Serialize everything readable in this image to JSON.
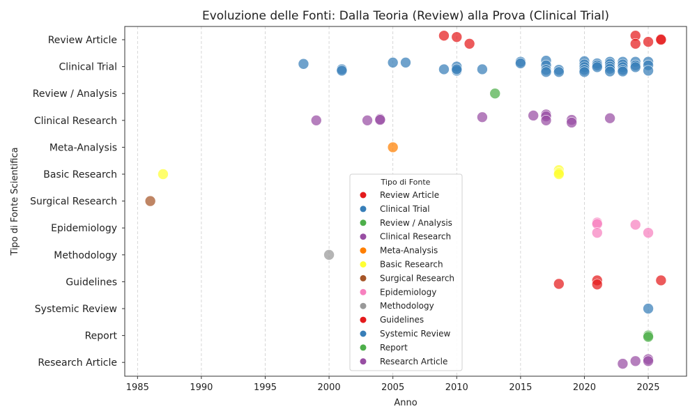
{
  "chart_data": {
    "type": "scatter",
    "title": "Evoluzione delle Fonti: Dalla Teoria (Review) alla Prova (Clinical Trial)",
    "xlabel": "Anno",
    "ylabel": "Tipo di Fonte Scientifica",
    "xlim": [
      1984,
      2028
    ],
    "xticks": [
      1985,
      1990,
      1995,
      2000,
      2005,
      2010,
      2015,
      2020,
      2025
    ],
    "grid": "vertical-dashed",
    "categories": [
      "Review Article",
      "Clinical Trial",
      "Review / Analysis",
      "Clinical Research",
      "Meta-Analysis",
      "Basic Research",
      "Surgical Research",
      "Epidemiology",
      "Methodology",
      "Guidelines",
      "Systemic Review",
      "Report",
      "Research Article"
    ],
    "legend": {
      "title": "Tipo di Fonte",
      "placement": "center-bottom",
      "entries": [
        "Review Article",
        "Clinical Trial",
        "Review / Analysis",
        "Clinical Research",
        "Meta-Analysis",
        "Basic Research",
        "Surgical Research",
        "Epidemiology",
        "Methodology",
        "Guidelines",
        "Systemic Review",
        "Report",
        "Research Article"
      ]
    },
    "series": [
      {
        "name": "Review Article",
        "color": "#e41a1c",
        "points": [
          [
            2009,
            0.15
          ],
          [
            2010,
            0.1
          ],
          [
            2011,
            -0.15
          ],
          [
            2024,
            0.15
          ],
          [
            2024,
            -0.15
          ],
          [
            2025,
            -0.08
          ],
          [
            2026,
            0.02
          ],
          [
            2026,
            0.0
          ]
        ]
      },
      {
        "name": "Clinical Trial",
        "color": "#377eb8",
        "points": [
          [
            1998,
            0.1
          ],
          [
            2001,
            -0.1
          ],
          [
            2001,
            -0.15
          ],
          [
            2005,
            0.15
          ],
          [
            2006,
            0.15
          ],
          [
            2009,
            -0.1
          ],
          [
            2010,
            0.0
          ],
          [
            2010,
            -0.15
          ],
          [
            2010,
            -0.1
          ],
          [
            2012,
            -0.1
          ],
          [
            2015,
            0.18
          ],
          [
            2015,
            0.12
          ],
          [
            2017,
            0.22
          ],
          [
            2017,
            0.05
          ],
          [
            2017,
            -0.12
          ],
          [
            2017,
            -0.2
          ],
          [
            2018,
            -0.12
          ],
          [
            2018,
            -0.2
          ],
          [
            2020,
            0.2
          ],
          [
            2020,
            0.08
          ],
          [
            2020,
            -0.02
          ],
          [
            2020,
            -0.12
          ],
          [
            2020,
            -0.2
          ],
          [
            2021,
            0.12
          ],
          [
            2021,
            0.05
          ],
          [
            2021,
            -0.02
          ],
          [
            2022,
            0.18
          ],
          [
            2022,
            0.1
          ],
          [
            2022,
            0.0
          ],
          [
            2022,
            -0.08
          ],
          [
            2022,
            -0.18
          ],
          [
            2023,
            0.18
          ],
          [
            2023,
            0.08
          ],
          [
            2023,
            -0.02
          ],
          [
            2023,
            -0.12
          ],
          [
            2023,
            -0.18
          ],
          [
            2024,
            0.18
          ],
          [
            2024,
            0.05
          ],
          [
            2024,
            -0.02
          ],
          [
            2025,
            0.18
          ],
          [
            2025,
            0.05
          ],
          [
            2025,
            -0.15
          ]
        ]
      },
      {
        "name": "Review / Analysis",
        "color": "#4daf4a",
        "points": [
          [
            2013,
            0.0
          ]
        ]
      },
      {
        "name": "Clinical Research",
        "color": "#984ea3",
        "points": [
          [
            1999,
            0.0
          ],
          [
            2003,
            0.0
          ],
          [
            2004,
            0.05
          ],
          [
            2004,
            0.02
          ],
          [
            2012,
            0.12
          ],
          [
            2016,
            0.18
          ],
          [
            2017,
            0.22
          ],
          [
            2017,
            0.15
          ],
          [
            2017,
            0.0
          ],
          [
            2019,
            0.02
          ],
          [
            2019,
            -0.08
          ],
          [
            2022,
            0.08
          ]
        ]
      },
      {
        "name": "Meta-Analysis",
        "color": "#ff7f00",
        "points": [
          [
            2005,
            0.0
          ]
        ]
      },
      {
        "name": "Basic Research",
        "color": "#ffff33",
        "points": [
          [
            1987,
            0.0
          ],
          [
            2018,
            0.15
          ],
          [
            2018,
            0.05
          ],
          [
            2018,
            0.0
          ]
        ]
      },
      {
        "name": "Surgical Research",
        "color": "#a65628",
        "points": [
          [
            1986,
            0.0
          ]
        ]
      },
      {
        "name": "Epidemiology",
        "color": "#f781bf",
        "points": [
          [
            2021,
            0.2
          ],
          [
            2021,
            0.15
          ],
          [
            2021,
            -0.18
          ],
          [
            2024,
            0.12
          ],
          [
            2025,
            -0.18
          ]
        ]
      },
      {
        "name": "Methodology",
        "color": "#999999",
        "points": [
          [
            2000,
            0.0
          ]
        ]
      },
      {
        "name": "Guidelines",
        "color": "#e41a1c",
        "points": [
          [
            2018,
            -0.08
          ],
          [
            2021,
            0.05
          ],
          [
            2021,
            -0.1
          ],
          [
            2026,
            0.05
          ]
        ]
      },
      {
        "name": "Systemic Review",
        "color": "#377eb8",
        "points": [
          [
            2025,
            0.0
          ]
        ]
      },
      {
        "name": "Report",
        "color": "#4daf4a",
        "points": [
          [
            2025,
            0.0
          ],
          [
            2025,
            -0.05
          ]
        ]
      },
      {
        "name": "Research Article",
        "color": "#984ea3",
        "points": [
          [
            2023,
            -0.05
          ],
          [
            2024,
            0.05
          ],
          [
            2025,
            0.12
          ],
          [
            2025,
            0.05
          ]
        ]
      }
    ]
  }
}
